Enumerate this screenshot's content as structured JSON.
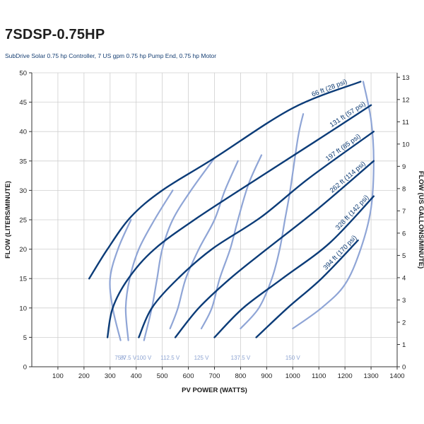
{
  "header": {
    "title": "7SDSP-0.75HP",
    "subtitle": "SubDrive Solar 0.75 hp Controller, 7 US gpm 0.75 hp Pump End, 0.75 hp Motor"
  },
  "colors": {
    "head_curve": "#0c3c78",
    "voltage_curve": "#8fa5d6",
    "grid": "#cfcfcf",
    "axis": "#333333"
  },
  "chart_data": {
    "type": "line",
    "title": "7SDSP-0.75HP",
    "subtitle": "SubDrive Solar 0.75 hp Controller, 7 US gpm 0.75 hp Pump End, 0.75 hp Motor",
    "xlabel": "PV POWER (WATTS)",
    "ylabel": "FLOW (LITERS/MINUTE)",
    "y2label": "FLOW (US GALLONS/MINUTE)",
    "xlim": [
      0,
      1400
    ],
    "ylim": [
      0,
      50
    ],
    "y2lim": [
      0,
      13.2
    ],
    "xticks": [
      "100",
      "200",
      "300",
      "400",
      "500",
      "600",
      "700",
      "800",
      "900",
      "1000",
      "1100",
      "1200",
      "1300",
      "1400"
    ],
    "yticks": [
      "0",
      "5",
      "10",
      "15",
      "20",
      "25",
      "30",
      "35",
      "40",
      "45",
      "50"
    ],
    "y2ticks": [
      "0",
      "1",
      "2",
      "3",
      "4",
      "5",
      "6",
      "7",
      "8",
      "9",
      "10",
      "11",
      "12",
      "13"
    ],
    "grid": true,
    "head_series": [
      {
        "name": "66 ft (28 psi)",
        "points": [
          [
            220,
            15
          ],
          [
            290,
            20
          ],
          [
            380,
            25.5
          ],
          [
            500,
            30
          ],
          [
            700,
            35.5
          ],
          [
            1000,
            44
          ],
          [
            1260,
            48.5
          ]
        ]
      },
      {
        "name": "131 ft (57 psi)",
        "points": [
          [
            290,
            5
          ],
          [
            310,
            10
          ],
          [
            370,
            15
          ],
          [
            470,
            20
          ],
          [
            640,
            25.5
          ],
          [
            900,
            33
          ],
          [
            1110,
            39
          ],
          [
            1300,
            44.5
          ]
        ]
      },
      {
        "name": "197 ft (85 psi)",
        "points": [
          [
            410,
            5
          ],
          [
            460,
            10
          ],
          [
            560,
            15
          ],
          [
            690,
            20
          ],
          [
            880,
            25.5
          ],
          [
            1060,
            32
          ],
          [
            1310,
            40
          ]
        ]
      },
      {
        "name": "262 ft (114 psi)",
        "points": [
          [
            550,
            5
          ],
          [
            640,
            10
          ],
          [
            760,
            15
          ],
          [
            900,
            20
          ],
          [
            1100,
            27
          ],
          [
            1310,
            35
          ]
        ]
      },
      {
        "name": "328 ft (142 psi)",
        "points": [
          [
            700,
            5
          ],
          [
            810,
            10
          ],
          [
            960,
            15
          ],
          [
            1140,
            21
          ],
          [
            1310,
            29
          ]
        ]
      },
      {
        "name": "394 ft (170 psi)",
        "points": [
          [
            860,
            5
          ],
          [
            980,
            10
          ],
          [
            1110,
            15
          ],
          [
            1250,
            21.5
          ]
        ]
      }
    ],
    "voltage_series": [
      {
        "name": "75 V",
        "points": [
          [
            340,
            4.5
          ],
          [
            310,
            10
          ],
          [
            300,
            15
          ],
          [
            330,
            20
          ],
          [
            380,
            25
          ]
        ]
      },
      {
        "name": "87.5 V",
        "points": [
          [
            370,
            4.5
          ],
          [
            360,
            10
          ],
          [
            375,
            15
          ],
          [
            410,
            20
          ],
          [
            470,
            25
          ],
          [
            540,
            30
          ]
        ]
      },
      {
        "name": "100 V",
        "points": [
          [
            430,
            4.5
          ],
          [
            460,
            10
          ],
          [
            480,
            15
          ],
          [
            500,
            20
          ],
          [
            540,
            25
          ],
          [
            610,
            30
          ],
          [
            700,
            35.5
          ]
        ]
      },
      {
        "name": "112.5 V",
        "points": [
          [
            530,
            6.5
          ],
          [
            560,
            10
          ],
          [
            590,
            15
          ],
          [
            640,
            20
          ],
          [
            700,
            25
          ],
          [
            740,
            30
          ],
          [
            790,
            35
          ]
        ]
      },
      {
        "name": "125 V",
        "points": [
          [
            650,
            6.5
          ],
          [
            690,
            10
          ],
          [
            720,
            15
          ],
          [
            760,
            20
          ],
          [
            790,
            25
          ],
          [
            830,
            31
          ],
          [
            880,
            36
          ]
        ]
      },
      {
        "name": "137.5 V",
        "points": [
          [
            800,
            6.5
          ],
          [
            870,
            10
          ],
          [
            920,
            15
          ],
          [
            950,
            20
          ],
          [
            970,
            25
          ],
          [
            990,
            30
          ],
          [
            1020,
            39
          ],
          [
            1040,
            43
          ]
        ]
      },
      {
        "name": "150 V",
        "points": [
          [
            1000,
            6.5
          ],
          [
            1110,
            10
          ],
          [
            1200,
            14
          ],
          [
            1260,
            20
          ],
          [
            1300,
            27
          ],
          [
            1310,
            35
          ],
          [
            1300,
            42
          ],
          [
            1270,
            48.5
          ]
        ]
      }
    ],
    "head_labels": [
      "66 ft (28 psi)",
      "131 ft (57 psi)",
      "197 ft (85 psi)",
      "262 ft (114 psi)",
      "328 ft (142 psi)",
      "394 ft (170 psi)"
    ],
    "voltage_labels": [
      "75 V",
      "87.5 V",
      "100 V",
      "112.5 V",
      "125 V",
      "137.5 V",
      "150 V"
    ]
  }
}
